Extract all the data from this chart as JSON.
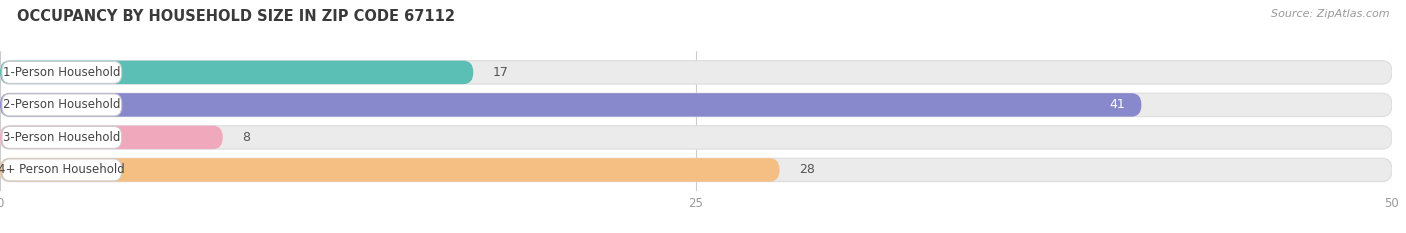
{
  "title": "OCCUPANCY BY HOUSEHOLD SIZE IN ZIP CODE 67112",
  "source": "Source: ZipAtlas.com",
  "categories": [
    "1-Person Household",
    "2-Person Household",
    "3-Person Household",
    "4+ Person Household"
  ],
  "values": [
    17,
    41,
    8,
    28
  ],
  "bar_colors": [
    "#5BBFB5",
    "#8888CC",
    "#F0A8BC",
    "#F5BE82"
  ],
  "xlim": [
    0,
    50
  ],
  "xticks": [
    0,
    25,
    50
  ],
  "background_color": "#FFFFFF",
  "bar_background_color": "#EBEBEB",
  "title_fontsize": 10.5,
  "source_fontsize": 8,
  "label_fontsize": 8.5,
  "value_fontsize": 9
}
